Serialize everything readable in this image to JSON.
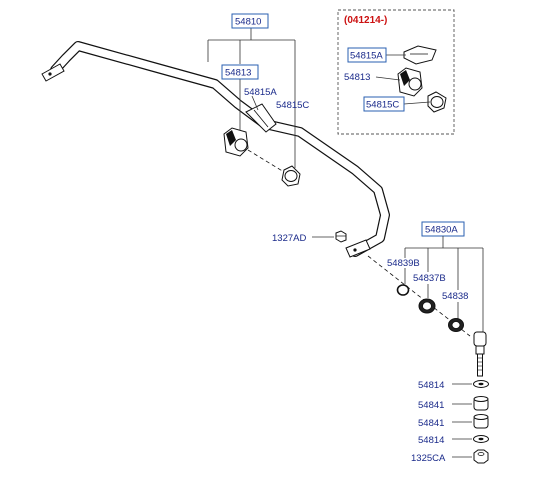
{
  "colors": {
    "label": "#1a2a8a",
    "box_border": "#2a5fb0",
    "variant_label": "#cc1111",
    "line": "#111111"
  },
  "labels": {
    "l54810": "54810",
    "l54813": "54813",
    "l54815A": "54815A",
    "l54815C": "54815C",
    "variant": "(041214-)",
    "v54815A": "54815A",
    "v54813": "54813",
    "v54815C": "54815C",
    "l1327AD": "1327AD",
    "l54830A": "54830A",
    "l54839B": "54839B",
    "l54837B": "54837B",
    "l54838": "54838",
    "s54814a": "54814",
    "s54841a": "54841",
    "s54841b": "54841",
    "s54814b": "54814",
    "s1325CA": "1325CA"
  }
}
